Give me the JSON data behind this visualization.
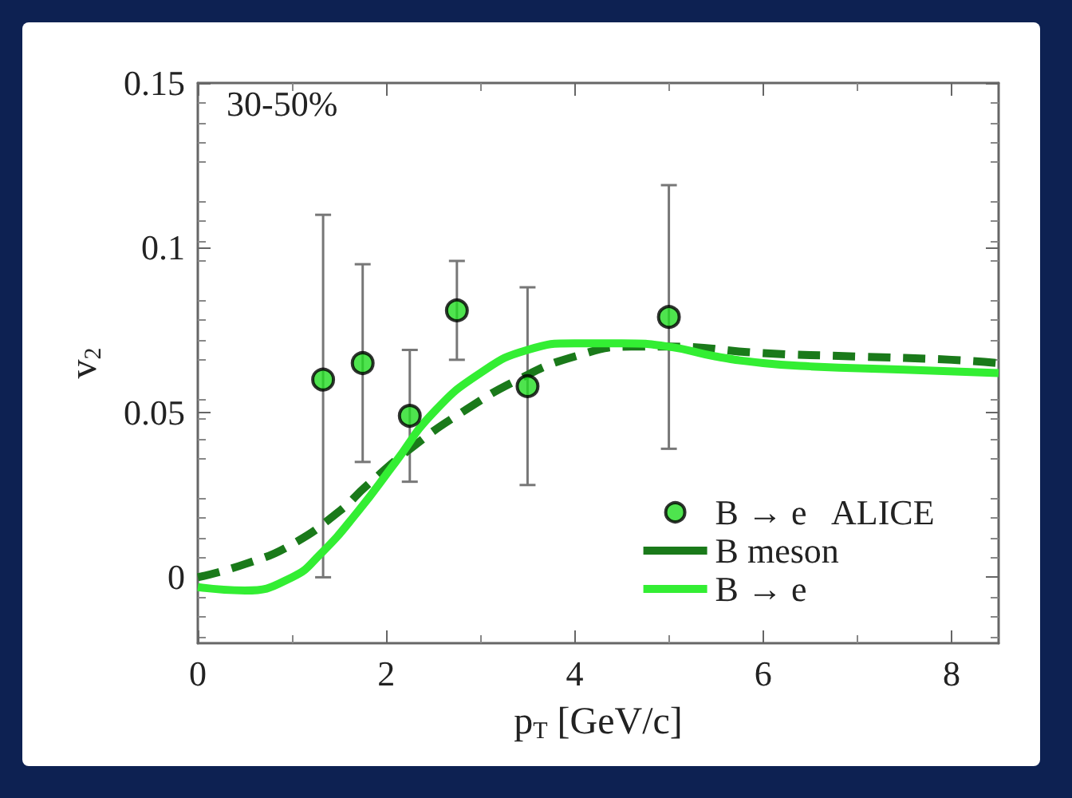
{
  "chart_data": {
    "type": "scatter",
    "xlabel": "p$_{T}$ [GeV/c]",
    "ylabel": "v$_{2}$",
    "annotations": [
      "30-50%"
    ],
    "xlim": [
      0,
      8.5
    ],
    "xticks": [
      0,
      2,
      4,
      6,
      8
    ],
    "ylim": [
      -0.02,
      0.15
    ],
    "yticks": [
      0,
      0.05,
      0.1,
      0.15
    ],
    "grid": false,
    "legend": "bottom right",
    "series": [
      {
        "name": "B → e   ALICE",
        "color": "#22dd22",
        "marker": "circle",
        "x": [
          1.33,
          1.75,
          2.25,
          2.75,
          3.5,
          5.0
        ],
        "values": [
          0.06,
          0.065,
          0.049,
          0.081,
          0.058,
          0.079
        ],
        "errors": [
          [
            0,
            0.11
          ],
          [
            0.035,
            0.095
          ],
          [
            0.029,
            0.069
          ],
          [
            0.066,
            0.096
          ],
          [
            0.028,
            0.088
          ],
          [
            0.039,
            0.119
          ]
        ]
      },
      {
        "name": "B meson",
        "type": "line",
        "color": "#1a7a1a",
        "line_style": "dashed",
        "marker": "none",
        "x": [
          0,
          0.5,
          1,
          1.5,
          1.8,
          2.3,
          2.8,
          3.4,
          4,
          4.6,
          5,
          6,
          7,
          8,
          8.5
        ],
        "values": [
          0,
          0.004,
          0.01,
          0.02,
          0.028,
          0.04,
          0.05,
          0.06,
          0.067,
          0.07,
          0.07,
          0.068,
          0.067,
          0.066,
          0.065
        ]
      },
      {
        "name": "B → e",
        "type": "line",
        "color": "#33ee33",
        "line_style": "solid",
        "marker": "none",
        "x": [
          0,
          0.5,
          1,
          1.3,
          1.7,
          2.1,
          2.5,
          3,
          3.5,
          4,
          4.5,
          5,
          5.5,
          6,
          6.5,
          7.5,
          8.5
        ],
        "values": [
          -0.003,
          -0.004,
          0.0,
          0.007,
          0.02,
          0.035,
          0.05,
          0.062,
          0.069,
          0.071,
          0.071,
          0.07,
          0.067,
          0.065,
          0.064,
          0.063,
          0.062
        ]
      }
    ]
  }
}
